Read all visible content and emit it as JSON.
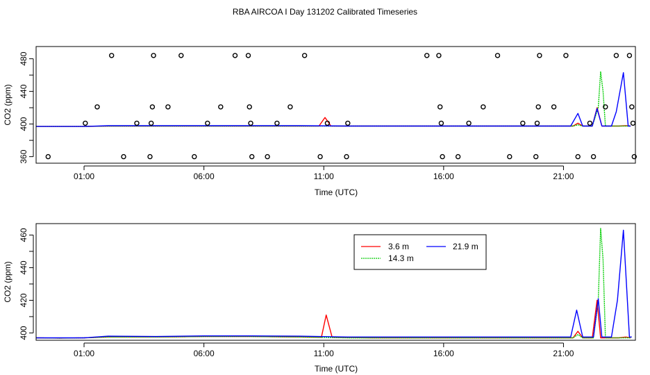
{
  "title": "RBA AIRCOA I  Day 131202  Calibrated Timeseries",
  "colors": {
    "s1": "#ff0000",
    "s2": "#00cc00",
    "s3": "#0000ff",
    "markers": "#000000"
  },
  "chart_data": [
    {
      "type": "line",
      "xlabel": "Time (UTC)",
      "ylabel": "CO2 (ppm)",
      "xlim": [
        -1.0,
        24.0
      ],
      "ylim": [
        352,
        495
      ],
      "xticks": [
        1,
        6,
        11,
        16,
        21
      ],
      "xtick_labels": [
        "01:00",
        "06:00",
        "11:00",
        "16:00",
        "21:00"
      ],
      "yticks": [
        360,
        380,
        400,
        420,
        440,
        460,
        480
      ],
      "ytick_labels": [
        "360",
        "",
        "400",
        "",
        "440",
        "",
        "480"
      ],
      "grid": false,
      "series": [
        {
          "color_key": "s1",
          "points": [
            [
              -1,
              397
            ],
            [
              1,
              397
            ],
            [
              2,
              397.5
            ],
            [
              4,
              397.5
            ],
            [
              6,
              397.5
            ],
            [
              8,
              397.5
            ],
            [
              10,
              397.5
            ],
            [
              10.8,
              397.5
            ],
            [
              11.05,
              408
            ],
            [
              11.3,
              397.5
            ],
            [
              13,
              397.5
            ],
            [
              15,
              397.5
            ],
            [
              17,
              397.5
            ],
            [
              19,
              397.5
            ],
            [
              20.5,
              397.5
            ],
            [
              21.4,
              397.5
            ],
            [
              21.6,
              401
            ],
            [
              21.8,
              397.5
            ],
            [
              22.2,
              397.5
            ],
            [
              22.4,
              420
            ],
            [
              22.6,
              397.5
            ],
            [
              23.3,
              397.5
            ],
            [
              23.6,
              398
            ],
            [
              23.8,
              397.5
            ]
          ]
        },
        {
          "color_key": "s2",
          "points": [
            [
              -1,
              397
            ],
            [
              1,
              397
            ],
            [
              2,
              397.5
            ],
            [
              4,
              397.5
            ],
            [
              6,
              397.5
            ],
            [
              8,
              397.5
            ],
            [
              10,
              397.5
            ],
            [
              12,
              397.5
            ],
            [
              14,
              397.5
            ],
            [
              16,
              397.5
            ],
            [
              18,
              397.5
            ],
            [
              20,
              397.5
            ],
            [
              21.4,
              397.5
            ],
            [
              21.6,
              399
            ],
            [
              21.8,
              397.5
            ],
            [
              22.2,
              397.5
            ],
            [
              22.45,
              420
            ],
            [
              22.55,
              464
            ],
            [
              22.65,
              440
            ],
            [
              22.75,
              397.5
            ],
            [
              23.3,
              397.5
            ],
            [
              23.8,
              397.5
            ]
          ]
        },
        {
          "color_key": "s3",
          "points": [
            [
              -1,
              397
            ],
            [
              1,
              397
            ],
            [
              2,
              398
            ],
            [
              4,
              398
            ],
            [
              6,
              398
            ],
            [
              8,
              398
            ],
            [
              10,
              398
            ],
            [
              12,
              397.5
            ],
            [
              14,
              397.5
            ],
            [
              16,
              397.5
            ],
            [
              18,
              397.5
            ],
            [
              20,
              397.5
            ],
            [
              21.3,
              397.5
            ],
            [
              21.6,
              413
            ],
            [
              21.8,
              397.5
            ],
            [
              22.2,
              397.5
            ],
            [
              22.4,
              419
            ],
            [
              22.6,
              397.5
            ],
            [
              23.0,
              397.5
            ],
            [
              23.2,
              415
            ],
            [
              23.5,
              463
            ],
            [
              23.7,
              397.5
            ],
            [
              23.8,
              397.5
            ]
          ]
        }
      ],
      "markers": [
        [
          -0.5,
          360
        ],
        [
          1.05,
          401
        ],
        [
          1.55,
          421
        ],
        [
          2.15,
          484
        ],
        [
          2.65,
          360
        ],
        [
          3.2,
          401
        ],
        [
          3.75,
          360
        ],
        [
          3.8,
          401
        ],
        [
          3.85,
          421
        ],
        [
          3.9,
          484
        ],
        [
          4.5,
          421
        ],
        [
          5.05,
          484
        ],
        [
          5.6,
          360
        ],
        [
          6.15,
          401
        ],
        [
          6.7,
          421
        ],
        [
          7.3,
          484
        ],
        [
          7.85,
          484
        ],
        [
          7.9,
          421
        ],
        [
          7.95,
          401
        ],
        [
          8.0,
          360
        ],
        [
          8.65,
          360
        ],
        [
          9.05,
          401
        ],
        [
          9.6,
          421
        ],
        [
          10.2,
          484
        ],
        [
          10.85,
          360
        ],
        [
          11.15,
          401
        ],
        [
          11.95,
          360
        ],
        [
          12.0,
          401
        ],
        [
          15.3,
          484
        ],
        [
          15.8,
          484
        ],
        [
          15.85,
          421
        ],
        [
          15.9,
          401
        ],
        [
          15.95,
          360
        ],
        [
          16.6,
          360
        ],
        [
          17.05,
          401
        ],
        [
          17.65,
          421
        ],
        [
          18.25,
          484
        ],
        [
          18.75,
          360
        ],
        [
          19.3,
          401
        ],
        [
          19.85,
          360
        ],
        [
          19.9,
          401
        ],
        [
          19.95,
          421
        ],
        [
          20.0,
          484
        ],
        [
          20.6,
          421
        ],
        [
          21.1,
          484
        ],
        [
          21.6,
          360
        ],
        [
          22.1,
          401
        ],
        [
          22.25,
          360
        ],
        [
          22.75,
          421
        ],
        [
          23.2,
          484
        ],
        [
          23.75,
          484
        ],
        [
          23.85,
          421
        ],
        [
          23.9,
          401
        ],
        [
          23.95,
          360
        ]
      ]
    },
    {
      "type": "line",
      "xlabel": "Time (UTC)",
      "ylabel": "CO2 (ppm)",
      "xlim": [
        -1.0,
        24.0
      ],
      "ylim": [
        395.5,
        467
      ],
      "xticks": [
        1,
        6,
        11,
        16,
        21
      ],
      "xtick_labels": [
        "01:00",
        "06:00",
        "11:00",
        "16:00",
        "21:00"
      ],
      "yticks": [
        400,
        410,
        420,
        430,
        440,
        450,
        460
      ],
      "ytick_labels": [
        "400",
        "",
        "420",
        "",
        "440",
        "",
        "460"
      ],
      "grid": false,
      "legend": {
        "position": "top-center",
        "entries": [
          {
            "label": "3.6 m",
            "color_key": "s1",
            "dashed": false
          },
          {
            "label": "21.9 m",
            "color_key": "s3",
            "dashed": false
          },
          {
            "label": "14.3 m",
            "color_key": "s2",
            "dashed": true
          }
        ]
      },
      "series": [
        {
          "name": "3.6 m",
          "color_key": "s1",
          "points": [
            [
              -1,
              397
            ],
            [
              0,
              396.8
            ],
            [
              1,
              397
            ],
            [
              2,
              397.5
            ],
            [
              4,
              397.5
            ],
            [
              6,
              397.8
            ],
            [
              8,
              397.8
            ],
            [
              10,
              397.5
            ],
            [
              10.9,
              397.3
            ],
            [
              11.1,
              411
            ],
            [
              11.35,
              397.3
            ],
            [
              13,
              397
            ],
            [
              15,
              397
            ],
            [
              17,
              397
            ],
            [
              19,
              397
            ],
            [
              20.5,
              397
            ],
            [
              21.4,
              397
            ],
            [
              21.6,
              401
            ],
            [
              21.8,
              397
            ],
            [
              22.2,
              397
            ],
            [
              22.4,
              420
            ],
            [
              22.55,
              397
            ],
            [
              23.3,
              397
            ],
            [
              23.6,
              397.5
            ],
            [
              23.8,
              397
            ]
          ]
        },
        {
          "name": "14.3 m",
          "color_key": "s2",
          "points": [
            [
              -1,
              397
            ],
            [
              0,
              396.8
            ],
            [
              1,
              397
            ],
            [
              2,
              397.5
            ],
            [
              4,
              397.5
            ],
            [
              6,
              397.8
            ],
            [
              8,
              397.8
            ],
            [
              10,
              397.5
            ],
            [
              12,
              397
            ],
            [
              14,
              397
            ],
            [
              16,
              397
            ],
            [
              18,
              397
            ],
            [
              20,
              397
            ],
            [
              21.4,
              397
            ],
            [
              21.6,
              399
            ],
            [
              21.8,
              397
            ],
            [
              22.25,
              397
            ],
            [
              22.45,
              420
            ],
            [
              22.55,
              464
            ],
            [
              22.65,
              445
            ],
            [
              22.75,
              397
            ],
            [
              23.3,
              397
            ],
            [
              23.8,
              397
            ]
          ]
        },
        {
          "name": "21.9 m",
          "color_key": "s3",
          "points": [
            [
              -1,
              397
            ],
            [
              0,
              397
            ],
            [
              1,
              397
            ],
            [
              2,
              398
            ],
            [
              4,
              397.8
            ],
            [
              6,
              398.2
            ],
            [
              8,
              398.2
            ],
            [
              10,
              398
            ],
            [
              12,
              397.5
            ],
            [
              14,
              397.5
            ],
            [
              16,
              397.5
            ],
            [
              18,
              397.5
            ],
            [
              20,
              397.5
            ],
            [
              21.3,
              397.5
            ],
            [
              21.55,
              414
            ],
            [
              21.8,
              397.5
            ],
            [
              22.25,
              397.5
            ],
            [
              22.45,
              421
            ],
            [
              22.6,
              397.5
            ],
            [
              23.0,
              397.5
            ],
            [
              23.25,
              420
            ],
            [
              23.5,
              463
            ],
            [
              23.75,
              397.5
            ],
            [
              23.85,
              397.5
            ]
          ]
        }
      ]
    }
  ]
}
